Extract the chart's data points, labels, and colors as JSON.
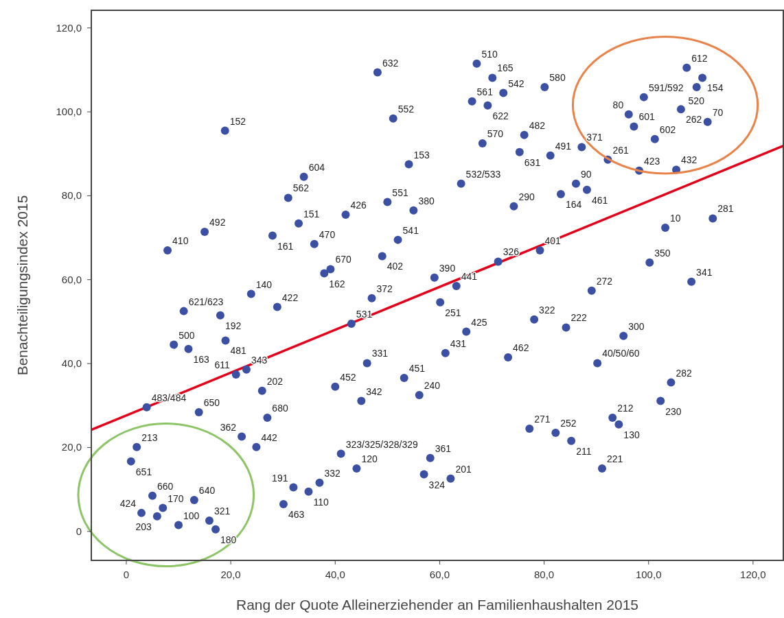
{
  "chart_data": {
    "type": "scatter",
    "xlabel": "Rang der Quote Alleinerziehender an Familienhaushalten 2015",
    "ylabel": "Benachteiligungsindex 2015",
    "xlim": [
      -6.7,
      125.8
    ],
    "ylim": [
      -6.9,
      124.2
    ],
    "xticks": [
      {
        "value": 0,
        "label": "0"
      },
      {
        "value": 20,
        "label": "20,0"
      },
      {
        "value": 40,
        "label": "40,0"
      },
      {
        "value": 60,
        "label": "60,0"
      },
      {
        "value": 80,
        "label": "80,0"
      },
      {
        "value": 100,
        "label": "100,0"
      },
      {
        "value": 120,
        "label": "120,0"
      }
    ],
    "yticks": [
      {
        "value": 0,
        "label": "0"
      },
      {
        "value": 20,
        "label": "20,0"
      },
      {
        "value": 40,
        "label": "40,0"
      },
      {
        "value": 60,
        "label": "60,0"
      },
      {
        "value": 80,
        "label": "80,0"
      },
      {
        "value": 100,
        "label": "100,0"
      },
      {
        "value": 120,
        "label": "120,0"
      }
    ],
    "grid": false,
    "marker": "circle",
    "series": [
      {
        "color": "#3b4fa3",
        "x": [
          48.1,
          18.9,
          51.1,
          54.1,
          34.0,
          31.0,
          50.0,
          55.0,
          42.0,
          33.0,
          15.0,
          28.0,
          36.0,
          7.9,
          52.0,
          49.0,
          37.9,
          39.1,
          23.9,
          59.0,
          63.2,
          71.2,
          79.2,
          47.0,
          11.0,
          18.0,
          28.9,
          43.1,
          9.1,
          11.9,
          19.0,
          21.0,
          23.0,
          26.0,
          3.9,
          13.9,
          27.0,
          22.1,
          24.9,
          2.0,
          0.9,
          5.0,
          7.0,
          5.9,
          2.9,
          10.0,
          13.0,
          15.9,
          17.1,
          32.0,
          30.1,
          34.9,
          37.0,
          41.1,
          44.1,
          40.0,
          46.1,
          45.0,
          53.2,
          56.1,
          61.1,
          60.1,
          65.1,
          57.0,
          58.2,
          62.1,
          73.1,
          78.1,
          84.2,
          95.2,
          90.2,
          104.3,
          102.3,
          93.1,
          94.3,
          77.2,
          82.2,
          85.2,
          91.1,
          67.1,
          70.1,
          72.2,
          66.2,
          69.2,
          80.1,
          76.2,
          68.2,
          75.3,
          81.2,
          87.2,
          92.2,
          98.2,
          105.3,
          96.2,
          97.2,
          99.1,
          107.3,
          110.3,
          109.2,
          106.2,
          111.3,
          101.2,
          64.1,
          74.2,
          83.2,
          86.1,
          88.2,
          103.2,
          112.3,
          100.2,
          108.2,
          89.1
        ],
        "values": [
          109.4,
          95.5,
          98.4,
          87.5,
          84.5,
          79.5,
          78.5,
          76.5,
          75.5,
          73.4,
          71.4,
          70.5,
          68.5,
          67.0,
          69.5,
          65.6,
          61.5,
          62.5,
          56.6,
          60.5,
          58.5,
          64.3,
          67.0,
          55.6,
          52.5,
          51.5,
          53.5,
          49.5,
          44.5,
          43.5,
          45.5,
          37.4,
          38.6,
          33.5,
          29.6,
          28.4,
          27.1,
          22.6,
          20.1,
          20.1,
          16.7,
          8.5,
          5.6,
          3.6,
          4.4,
          1.5,
          7.5,
          2.6,
          0.5,
          10.5,
          6.5,
          9.5,
          11.6,
          18.5,
          15.0,
          34.5,
          40.1,
          31.1,
          36.6,
          32.5,
          42.5,
          54.6,
          47.6,
          13.6,
          17.5,
          12.6,
          41.5,
          50.5,
          48.6,
          46.6,
          40.1,
          35.5,
          31.1,
          27.1,
          25.5,
          24.5,
          23.5,
          21.6,
          15.0,
          111.5,
          108.1,
          104.5,
          102.5,
          101.5,
          105.9,
          94.5,
          92.5,
          90.4,
          89.6,
          91.6,
          88.6,
          86.0,
          86.2,
          99.4,
          96.5,
          103.5,
          110.5,
          108.1,
          105.9,
          100.6,
          97.6,
          93.5,
          82.9,
          77.5,
          80.4,
          82.9,
          81.4,
          72.4,
          74.6,
          64.1,
          59.5,
          57.4
        ]
      },
      {
        "type": "line",
        "marker": "none",
        "color": "#e2001a",
        "x": [
          -6.7,
          125.8
        ],
        "values": [
          24.2,
          91.9
        ]
      }
    ],
    "annotations": [
      {
        "text": "632",
        "x": 48.1,
        "y": 109.4
      },
      {
        "text": "152",
        "x": 18.9,
        "y": 95.5
      },
      {
        "text": "552",
        "x": 51.1,
        "y": 98.4
      },
      {
        "text": "153",
        "x": 54.1,
        "y": 87.5
      },
      {
        "text": "604",
        "x": 34.0,
        "y": 84.5
      },
      {
        "text": "562",
        "x": 31.0,
        "y": 79.5
      },
      {
        "text": "551",
        "x": 50.0,
        "y": 78.5
      },
      {
        "text": "380",
        "x": 55.0,
        "y": 76.5
      },
      {
        "text": "426",
        "x": 42.0,
        "y": 75.5
      },
      {
        "text": "151",
        "x": 33.0,
        "y": 73.4
      },
      {
        "text": "492",
        "x": 15.0,
        "y": 71.4
      },
      {
        "text": "161",
        "x": 28.0,
        "y": 70.5
      },
      {
        "text": "470",
        "x": 36.0,
        "y": 68.5
      },
      {
        "text": "410",
        "x": 7.9,
        "y": 67.0
      },
      {
        "text": "541",
        "x": 52.0,
        "y": 69.5
      },
      {
        "text": "402",
        "x": 49.0,
        "y": 65.6
      },
      {
        "text": "162",
        "x": 37.9,
        "y": 61.5
      },
      {
        "text": "670",
        "x": 39.1,
        "y": 62.5
      },
      {
        "text": "140",
        "x": 23.9,
        "y": 56.6
      },
      {
        "text": "390",
        "x": 59.0,
        "y": 60.5
      },
      {
        "text": "441",
        "x": 63.2,
        "y": 58.5
      },
      {
        "text": "326",
        "x": 71.2,
        "y": 64.3
      },
      {
        "text": "401",
        "x": 79.2,
        "y": 67.0
      },
      {
        "text": "372",
        "x": 47.0,
        "y": 55.6
      },
      {
        "text": "621/623",
        "x": 11.0,
        "y": 52.5
      },
      {
        "text": "192",
        "x": 18.0,
        "y": 51.5
      },
      {
        "text": "422",
        "x": 28.9,
        "y": 53.5
      },
      {
        "text": "531",
        "x": 43.1,
        "y": 49.5
      },
      {
        "text": "500",
        "x": 9.1,
        "y": 44.5
      },
      {
        "text": "163",
        "x": 11.9,
        "y": 43.5
      },
      {
        "text": "481",
        "x": 19.0,
        "y": 45.5
      },
      {
        "text": "611",
        "x": 21.0,
        "y": 37.4
      },
      {
        "text": "343",
        "x": 23.0,
        "y": 38.6
      },
      {
        "text": "202",
        "x": 26.0,
        "y": 33.5
      },
      {
        "text": "483/484",
        "x": 3.9,
        "y": 29.6
      },
      {
        "text": "650",
        "x": 13.9,
        "y": 28.4
      },
      {
        "text": "680",
        "x": 27.0,
        "y": 27.1
      },
      {
        "text": "362",
        "x": 22.1,
        "y": 22.6
      },
      {
        "text": "442",
        "x": 24.9,
        "y": 20.1
      },
      {
        "text": "213",
        "x": 2.0,
        "y": 20.1
      },
      {
        "text": "651",
        "x": 0.9,
        "y": 16.7
      },
      {
        "text": "660",
        "x": 5.0,
        "y": 8.5
      },
      {
        "text": "170",
        "x": 7.0,
        "y": 5.6
      },
      {
        "text": "203",
        "x": 5.9,
        "y": 3.6
      },
      {
        "text": "424",
        "x": 2.9,
        "y": 4.4
      },
      {
        "text": "100",
        "x": 10.0,
        "y": 1.5
      },
      {
        "text": "640",
        "x": 13.0,
        "y": 7.5
      },
      {
        "text": "321",
        "x": 15.9,
        "y": 2.6
      },
      {
        "text": "180",
        "x": 17.1,
        "y": 0.5
      },
      {
        "text": "191",
        "x": 32.0,
        "y": 10.5
      },
      {
        "text": "463",
        "x": 30.1,
        "y": 6.5
      },
      {
        "text": "110",
        "x": 34.9,
        "y": 9.5
      },
      {
        "text": "332",
        "x": 37.0,
        "y": 11.6
      },
      {
        "text": "323/325/328/329",
        "x": 41.1,
        "y": 18.5
      },
      {
        "text": "120",
        "x": 44.1,
        "y": 15.0
      },
      {
        "text": "452",
        "x": 40.0,
        "y": 34.5
      },
      {
        "text": "331",
        "x": 46.1,
        "y": 40.1
      },
      {
        "text": "342",
        "x": 45.0,
        "y": 31.1
      },
      {
        "text": "451",
        "x": 53.2,
        "y": 36.6
      },
      {
        "text": "240",
        "x": 56.1,
        "y": 32.5
      },
      {
        "text": "431",
        "x": 61.1,
        "y": 42.5
      },
      {
        "text": "251",
        "x": 60.1,
        "y": 54.6
      },
      {
        "text": "425",
        "x": 65.1,
        "y": 47.6
      },
      {
        "text": "324",
        "x": 57.0,
        "y": 13.6
      },
      {
        "text": "361",
        "x": 58.2,
        "y": 17.5
      },
      {
        "text": "201",
        "x": 62.1,
        "y": 12.6
      },
      {
        "text": "462",
        "x": 73.1,
        "y": 41.5
      },
      {
        "text": "322",
        "x": 78.1,
        "y": 50.5
      },
      {
        "text": "222",
        "x": 84.2,
        "y": 48.6
      },
      {
        "text": "300",
        "x": 95.2,
        "y": 46.6
      },
      {
        "text": "40/50/60",
        "x": 90.2,
        "y": 40.1
      },
      {
        "text": "282",
        "x": 104.3,
        "y": 35.5
      },
      {
        "text": "230",
        "x": 102.3,
        "y": 31.1
      },
      {
        "text": "212",
        "x": 93.1,
        "y": 27.1
      },
      {
        "text": "130",
        "x": 94.3,
        "y": 25.5
      },
      {
        "text": "271",
        "x": 77.2,
        "y": 24.5
      },
      {
        "text": "252",
        "x": 82.2,
        "y": 23.5
      },
      {
        "text": "211",
        "x": 85.2,
        "y": 21.6
      },
      {
        "text": "221",
        "x": 91.1,
        "y": 15.0
      },
      {
        "text": "510",
        "x": 67.1,
        "y": 111.5
      },
      {
        "text": "165",
        "x": 70.1,
        "y": 108.1
      },
      {
        "text": "542",
        "x": 72.2,
        "y": 104.5
      },
      {
        "text": "561",
        "x": 66.2,
        "y": 102.5
      },
      {
        "text": "622",
        "x": 69.2,
        "y": 101.5
      },
      {
        "text": "580",
        "x": 80.1,
        "y": 105.9
      },
      {
        "text": "482",
        "x": 76.2,
        "y": 94.5
      },
      {
        "text": "570",
        "x": 68.2,
        "y": 92.5
      },
      {
        "text": "631",
        "x": 75.3,
        "y": 90.4
      },
      {
        "text": "491",
        "x": 81.2,
        "y": 89.6
      },
      {
        "text": "371",
        "x": 87.2,
        "y": 91.6
      },
      {
        "text": "261",
        "x": 92.2,
        "y": 88.6
      },
      {
        "text": "423",
        "x": 98.2,
        "y": 86.0
      },
      {
        "text": "432",
        "x": 105.3,
        "y": 86.2
      },
      {
        "text": "80",
        "x": 96.2,
        "y": 99.4
      },
      {
        "text": "601",
        "x": 97.2,
        "y": 96.5
      },
      {
        "text": "591/592",
        "x": 99.1,
        "y": 103.5
      },
      {
        "text": "612",
        "x": 107.3,
        "y": 110.5
      },
      {
        "text": "154",
        "x": 110.3,
        "y": 108.1
      },
      {
        "text": "520",
        "x": 109.2,
        "y": 105.9
      },
      {
        "text": "262",
        "x": 106.2,
        "y": 100.6
      },
      {
        "text": "70",
        "x": 111.3,
        "y": 97.6
      },
      {
        "text": "602",
        "x": 101.2,
        "y": 93.5
      },
      {
        "text": "532/533",
        "x": 64.1,
        "y": 82.9
      },
      {
        "text": "290",
        "x": 74.2,
        "y": 77.5
      },
      {
        "text": "164",
        "x": 83.2,
        "y": 80.4
      },
      {
        "text": "90",
        "x": 86.1,
        "y": 82.9
      },
      {
        "text": "461",
        "x": 88.2,
        "y": 81.4
      },
      {
        "text": "10",
        "x": 103.2,
        "y": 72.4
      },
      {
        "text": "281",
        "x": 112.3,
        "y": 74.6
      },
      {
        "text": "350",
        "x": 100.2,
        "y": 64.1
      },
      {
        "text": "341",
        "x": 108.2,
        "y": 59.5
      },
      {
        "text": "272",
        "x": 89.1,
        "y": 57.4
      }
    ]
  }
}
